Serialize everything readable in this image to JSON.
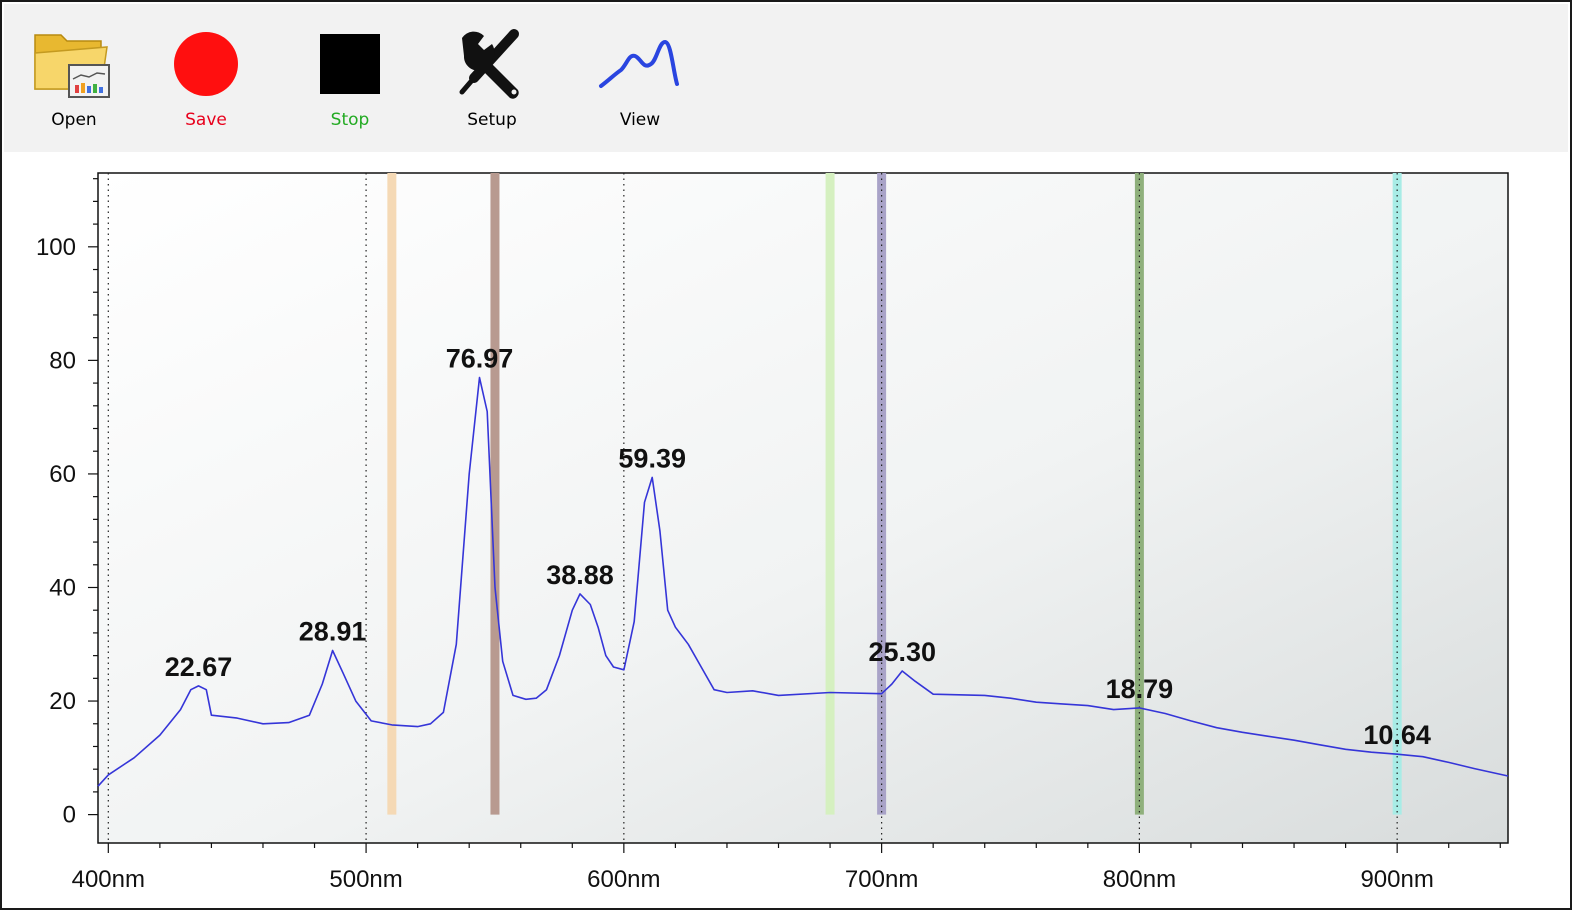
{
  "toolbar": {
    "items": [
      {
        "label": "Open",
        "color": "#000000",
        "icon": "folder-chart-icon"
      },
      {
        "label": "Save",
        "color": "#e8001c",
        "icon": "red-circle-icon"
      },
      {
        "label": "Stop",
        "color": "#22aa22",
        "icon": "black-square-icon"
      },
      {
        "label": "Setup",
        "color": "#000000",
        "icon": "wrench-screwdriver-icon"
      },
      {
        "label": "View",
        "color": "#000000",
        "icon": "wave-line-icon"
      }
    ]
  },
  "chart_data": {
    "type": "line",
    "title": "",
    "xlabel": "",
    "ylabel": "",
    "xlim": [
      396,
      943
    ],
    "ylim": [
      -5,
      113
    ],
    "x_ticks": [
      400,
      500,
      600,
      700,
      800,
      900
    ],
    "x_tick_labels": [
      "400nm",
      "500nm",
      "600nm",
      "700nm",
      "800nm",
      "900nm"
    ],
    "y_ticks": [
      0,
      20,
      40,
      60,
      80,
      100
    ],
    "y_tick_labels": [
      "0",
      "20",
      "40",
      "60",
      "80",
      "100"
    ],
    "grid": "vertical dotted lines at major x ticks",
    "line_color": "#3535d8",
    "series": [
      {
        "x": [
          396,
          400,
          410,
          420,
          428,
          432,
          435,
          438,
          440,
          450,
          460,
          470,
          478,
          483,
          487,
          491,
          496,
          502,
          510,
          520,
          525,
          530,
          535,
          540,
          544,
          547,
          550,
          553,
          557,
          562,
          566,
          570,
          575,
          580,
          583,
          587,
          590,
          593,
          596,
          600,
          604,
          608,
          611,
          614,
          617,
          620,
          625,
          630,
          635,
          640,
          650,
          660,
          680,
          700,
          704,
          708,
          713,
          720,
          740,
          750,
          760,
          770,
          780,
          790,
          800,
          810,
          820,
          830,
          840,
          850,
          860,
          870,
          880,
          890,
          900,
          910,
          920,
          930,
          943
        ],
        "y": [
          5,
          7,
          10,
          14,
          18.5,
          22,
          22.67,
          22,
          17.5,
          17,
          16,
          16.2,
          17.5,
          23,
          28.91,
          25,
          20,
          16.5,
          15.8,
          15.5,
          16,
          18,
          30,
          60,
          76.97,
          71,
          40,
          27,
          21,
          20.3,
          20.5,
          22,
          28,
          36,
          38.88,
          37,
          33,
          28,
          26,
          25.5,
          34,
          55,
          59.39,
          50,
          36,
          33,
          30,
          26,
          22,
          21.5,
          21.8,
          21,
          21.5,
          21.3,
          23,
          25.3,
          23.5,
          21.2,
          21,
          20.5,
          19.8,
          19.5,
          19.2,
          18.5,
          18.79,
          17.8,
          16.5,
          15.3,
          14.5,
          13.8,
          13.1,
          12.3,
          11.5,
          11,
          10.64,
          10.2,
          9.2,
          8.1,
          6.8
        ]
      }
    ],
    "peak_labels": [
      {
        "x": 435,
        "y": 22.67,
        "text": "22.67"
      },
      {
        "x": 487,
        "y": 28.91,
        "text": "28.91"
      },
      {
        "x": 544,
        "y": 76.97,
        "text": "76.97"
      },
      {
        "x": 583,
        "y": 38.88,
        "text": "38.88"
      },
      {
        "x": 611,
        "y": 59.39,
        "text": "59.39"
      },
      {
        "x": 708,
        "y": 25.3,
        "text": "25.30"
      },
      {
        "x": 800,
        "y": 18.79,
        "text": "18.79"
      },
      {
        "x": 900,
        "y": 10.64,
        "text": "10.64"
      }
    ],
    "wavelength_markers": [
      {
        "x": 510,
        "color": "#f5d9b5"
      },
      {
        "x": 550,
        "color": "#b89a90"
      },
      {
        "x": 680,
        "color": "#d5f0c0"
      },
      {
        "x": 700,
        "color": "#a9a3c8"
      },
      {
        "x": 800,
        "color": "#8fb07c"
      },
      {
        "x": 900,
        "color": "#a8ece6"
      }
    ]
  }
}
